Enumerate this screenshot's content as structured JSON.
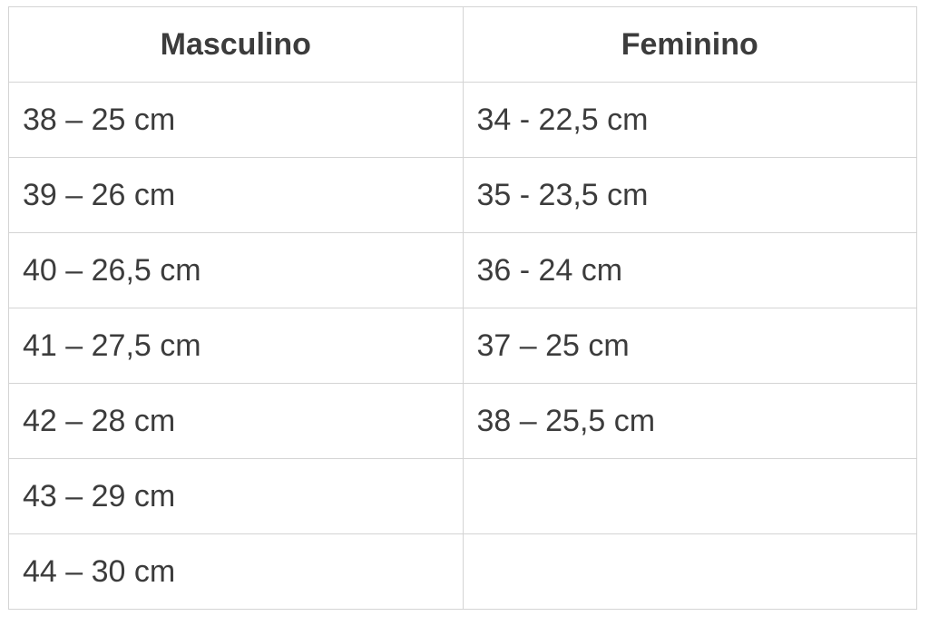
{
  "table": {
    "headers": [
      "Masculino",
      "Feminino"
    ],
    "rows": [
      [
        "38 – 25 cm",
        "34 - 22,5 cm"
      ],
      [
        "39 – 26 cm",
        "35 - 23,5 cm"
      ],
      [
        "40 – 26,5 cm",
        "36 - 24 cm"
      ],
      [
        "41 – 27,5 cm",
        "37 – 25 cm"
      ],
      [
        "42 – 28 cm",
        "38 – 25,5 cm"
      ],
      [
        "43 – 29 cm",
        ""
      ],
      [
        "44 – 30 cm",
        ""
      ]
    ]
  }
}
